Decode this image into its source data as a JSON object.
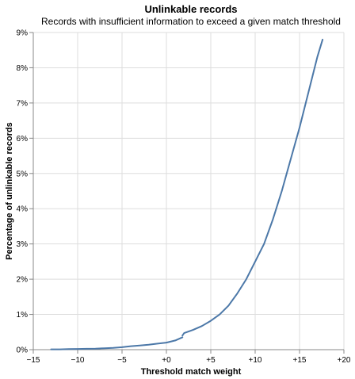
{
  "chart_data": {
    "type": "line",
    "title": "Unlinkable records",
    "subtitle": "Records with insufficient information to exceed a given match threshold",
    "xlabel": "Threshold match weight",
    "ylabel": "Percentage of unlinkable records",
    "xlim": [
      -15,
      20
    ],
    "ylim": [
      0,
      9
    ],
    "grid": true,
    "x_ticks": [
      -15,
      -10,
      -5,
      0,
      5,
      10,
      15,
      20
    ],
    "x_tick_labels": [
      "−15",
      "−10",
      "−5",
      "+0",
      "+5",
      "+10",
      "+15",
      "+20"
    ],
    "y_ticks": [
      0,
      1,
      2,
      3,
      4,
      5,
      6,
      7,
      8,
      9
    ],
    "y_tick_labels": [
      "0%",
      "1%",
      "2%",
      "3%",
      "4%",
      "5%",
      "6%",
      "7%",
      "8%",
      "9%"
    ],
    "color": "#4c78a8",
    "segments": [
      {
        "x": [
          -13,
          -12,
          -11,
          -10,
          -9,
          -8,
          -7,
          -6,
          -5,
          -4,
          -3,
          -2,
          -1,
          0,
          1,
          1.8
        ],
        "y": [
          0.01,
          0.01,
          0.015,
          0.02,
          0.025,
          0.03,
          0.04,
          0.05,
          0.07,
          0.1,
          0.12,
          0.14,
          0.17,
          0.2,
          0.26,
          0.35
        ]
      },
      {
        "x": [
          1.8,
          2,
          3,
          4,
          5,
          6,
          7,
          8,
          9,
          10,
          11,
          12,
          13,
          14,
          15,
          16,
          17,
          17.6
        ],
        "y": [
          0.4,
          0.47,
          0.56,
          0.67,
          0.82,
          1.0,
          1.25,
          1.6,
          2.0,
          2.5,
          3.0,
          3.7,
          4.5,
          5.4,
          6.3,
          7.3,
          8.3,
          8.8
        ]
      }
    ]
  }
}
